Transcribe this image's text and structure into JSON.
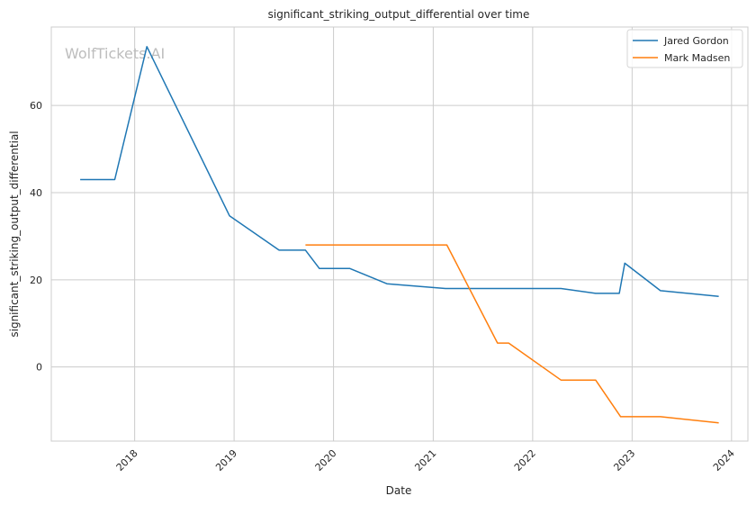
{
  "chart_data": {
    "type": "line",
    "title": "significant_striking_output_differential over time",
    "xlabel": "Date",
    "ylabel": "significant_striking_output_differential",
    "watermark": "WolfTickets.AI",
    "x_type": "date",
    "xlim": [
      "2017-03-01",
      "2024-03-01"
    ],
    "ylim": [
      -17,
      78
    ],
    "x_ticks": [
      {
        "label": "2018",
        "date": "2018-01-01"
      },
      {
        "label": "2019",
        "date": "2019-01-01"
      },
      {
        "label": "2020",
        "date": "2020-01-01"
      },
      {
        "label": "2021",
        "date": "2021-01-01"
      },
      {
        "label": "2022",
        "date": "2022-01-01"
      },
      {
        "label": "2023",
        "date": "2023-01-01"
      },
      {
        "label": "2024",
        "date": "2024-01-01"
      }
    ],
    "y_ticks": [
      0,
      20,
      40,
      60
    ],
    "grid": true,
    "legend_position": "top-right",
    "series": [
      {
        "name": "Jared Gordon",
        "color": "#1f77b4",
        "points": [
          {
            "x": "2017-06-15",
            "y": 43.0
          },
          {
            "x": "2017-10-20",
            "y": 43.0
          },
          {
            "x": "2018-02-15",
            "y": 73.5
          },
          {
            "x": "2018-12-15",
            "y": 34.7
          },
          {
            "x": "2019-06-15",
            "y": 26.8
          },
          {
            "x": "2019-09-20",
            "y": 26.8
          },
          {
            "x": "2019-11-10",
            "y": 22.6
          },
          {
            "x": "2020-03-01",
            "y": 22.6
          },
          {
            "x": "2020-07-15",
            "y": 19.1
          },
          {
            "x": "2021-02-15",
            "y": 18.0
          },
          {
            "x": "2022-04-15",
            "y": 18.0
          },
          {
            "x": "2022-08-20",
            "y": 16.9
          },
          {
            "x": "2022-11-15",
            "y": 16.9
          },
          {
            "x": "2022-12-05",
            "y": 23.8
          },
          {
            "x": "2023-04-15",
            "y": 17.5
          },
          {
            "x": "2023-11-15",
            "y": 16.2
          }
        ]
      },
      {
        "name": "Mark Madsen",
        "color": "#ff7f0e",
        "points": [
          {
            "x": "2019-09-20",
            "y": 28.0
          },
          {
            "x": "2021-02-20",
            "y": 28.0
          },
          {
            "x": "2021-08-25",
            "y": 5.5
          },
          {
            "x": "2021-10-05",
            "y": 5.5
          },
          {
            "x": "2022-04-15",
            "y": -3.0
          },
          {
            "x": "2022-08-20",
            "y": -3.0
          },
          {
            "x": "2022-11-20",
            "y": -11.4
          },
          {
            "x": "2023-04-15",
            "y": -11.4
          },
          {
            "x": "2023-11-15",
            "y": -12.8
          }
        ]
      }
    ]
  }
}
